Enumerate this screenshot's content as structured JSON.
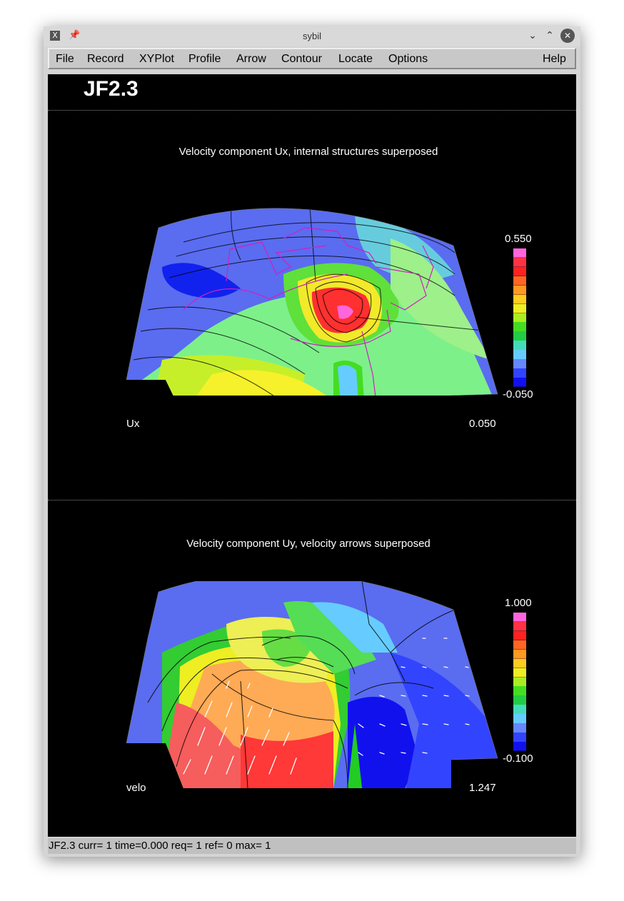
{
  "window": {
    "title": "sybil",
    "app_icon": "x-app-icon"
  },
  "titlebar_buttons": {
    "pin": "pin-icon",
    "minimize": "chevron-down-icon",
    "maximize": "chevron-up-icon",
    "close": "close-icon"
  },
  "menu": {
    "items": [
      "File",
      "Record",
      "XYPlot",
      "Profile",
      "Arrow",
      "Contour",
      "Locate",
      "Options"
    ],
    "help": "Help"
  },
  "canvas_title": "JF2.3",
  "plots": [
    {
      "title": "Velocity component Ux, internal structures superposed",
      "field": "Ux",
      "field_value": "0.050",
      "colorbar_max": "0.550",
      "colorbar_min": "-0.050"
    },
    {
      "title": "Velocity component Uy, velocity arrows superposed",
      "field": "velo",
      "field_value": "1.247",
      "colorbar_max": "1.000",
      "colorbar_min": "-0.100"
    }
  ],
  "colorbar_colors": [
    "#ff66dd",
    "#ff3344",
    "#ff2222",
    "#ff6622",
    "#ff9922",
    "#ffcc22",
    "#eeee22",
    "#aaee22",
    "#44dd22",
    "#22cc44",
    "#44ddbb",
    "#66ccff",
    "#6688ff",
    "#3344ff",
    "#1111ee"
  ],
  "status": "JF2.3 curr=  1 time=0.000 req=  1 ref=  0 max=  1"
}
